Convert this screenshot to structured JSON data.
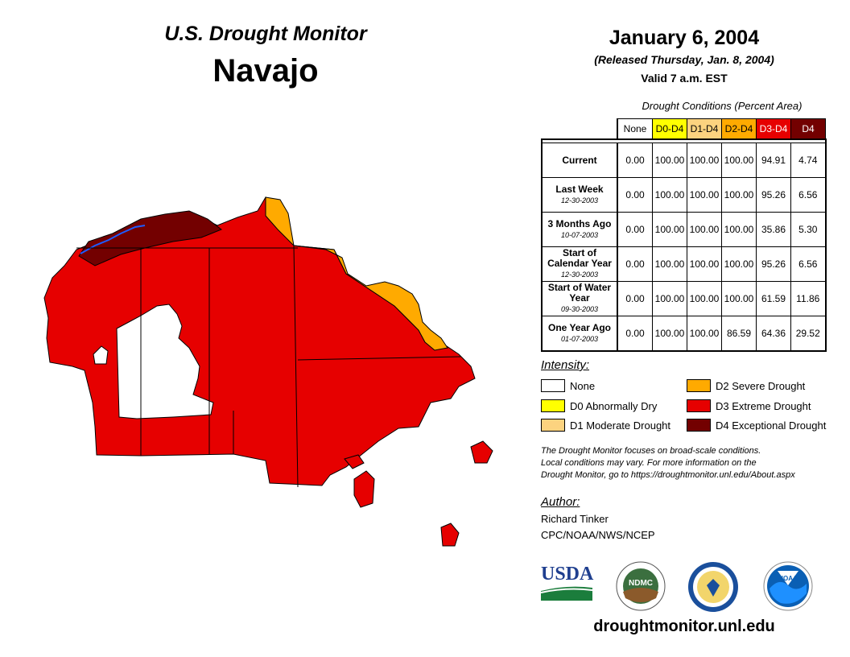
{
  "header": {
    "title": "U.S. Drought Monitor",
    "region": "Navajo"
  },
  "date": {
    "main": "January 6, 2004",
    "released": "(Released Thursday, Jan. 8, 2004)",
    "valid": "Valid 7 a.m. EST"
  },
  "table": {
    "title": "Drought Conditions (Percent Area)",
    "columns": [
      "None",
      "D0-D4",
      "D1-D4",
      "D2-D4",
      "D3-D4",
      "D4"
    ],
    "rows": [
      {
        "label": "Current",
        "date": "",
        "values": [
          "0.00",
          "100.00",
          "100.00",
          "100.00",
          "94.91",
          "4.74"
        ]
      },
      {
        "label": "Last Week",
        "date": "12-30-2003",
        "values": [
          "0.00",
          "100.00",
          "100.00",
          "100.00",
          "95.26",
          "6.56"
        ]
      },
      {
        "label": "3 Months Ago",
        "date": "10-07-2003",
        "values": [
          "0.00",
          "100.00",
          "100.00",
          "100.00",
          "35.86",
          "5.30"
        ]
      },
      {
        "label": "Start of Calendar Year",
        "date": "12-30-2003",
        "values": [
          "0.00",
          "100.00",
          "100.00",
          "100.00",
          "95.26",
          "6.56"
        ]
      },
      {
        "label": "Start of Water Year",
        "date": "09-30-2003",
        "values": [
          "0.00",
          "100.00",
          "100.00",
          "100.00",
          "61.59",
          "11.86"
        ]
      },
      {
        "label": "One Year Ago",
        "date": "01-07-2003",
        "values": [
          "0.00",
          "100.00",
          "100.00",
          "86.59",
          "64.36",
          "29.52"
        ]
      }
    ]
  },
  "legend": {
    "title": "Intensity:",
    "items": [
      {
        "label": "None",
        "color": "#ffffff"
      },
      {
        "label": "D0 Abnormally Dry",
        "color": "#ffff00"
      },
      {
        "label": "D1 Moderate Drought",
        "color": "#fcd37f"
      },
      {
        "label": "D2 Severe Drought",
        "color": "#ffaa00"
      },
      {
        "label": "D3 Extreme Drought",
        "color": "#e60000"
      },
      {
        "label": "D4 Exceptional Drought",
        "color": "#730000"
      }
    ]
  },
  "note": {
    "line1": "The Drought Monitor focuses on broad-scale conditions.",
    "line2": "Local conditions may vary. For more information on the",
    "line3": "Drought Monitor, go to https://droughtmonitor.unl.edu/About.aspx"
  },
  "author": {
    "title": "Author:",
    "name": "Richard Tinker",
    "org": "CPC/NOAA/NWS/NCEP"
  },
  "logos": {
    "usda": "USDA",
    "ndmc": "NDMC",
    "noaa": "NOAA"
  },
  "footer": {
    "url": "droughtmonitor.unl.edu"
  }
}
